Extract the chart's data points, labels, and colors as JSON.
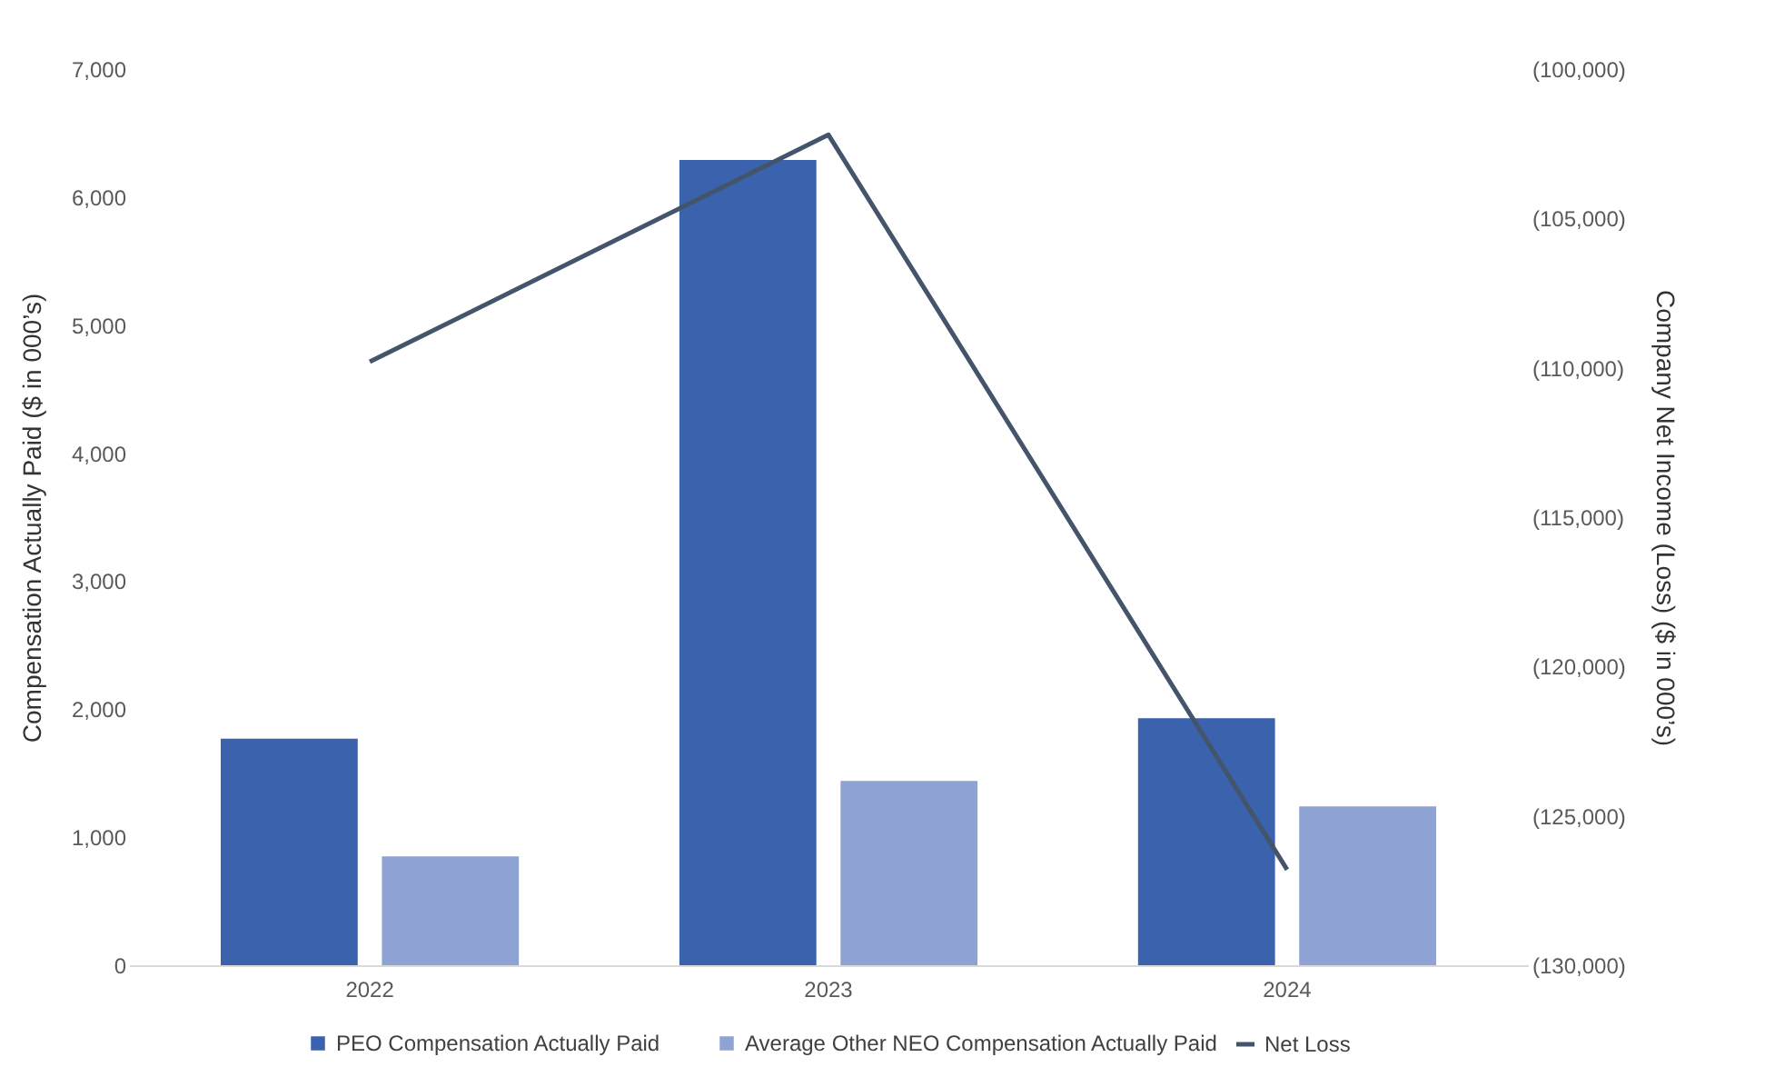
{
  "chart_data": {
    "type": "bar",
    "categories": [
      "2022",
      "2023",
      "2024"
    ],
    "ylabel": "Compensation Actually Paid ($ in 000’s)",
    "y2label": "Company Net Income (Loss) ($ in 000’s)",
    "ylim": [
      0,
      7000
    ],
    "yticks": [
      0,
      {
        "value": 1000,
        "label": "1,000"
      },
      {
        "value": 2000,
        "label": "2,000"
      },
      {
        "value": 3000,
        "label": "3,000"
      },
      {
        "value": 4000,
        "label": "4,000"
      },
      {
        "value": 5000,
        "label": "5,000"
      },
      {
        "value": 6000,
        "label": "6,000"
      },
      {
        "value": 7000,
        "label": "7,000"
      }
    ],
    "y2lim": [
      -130000,
      -100000
    ],
    "y2ticks": [
      {
        "value": -130000,
        "label": "(130,000)"
      },
      {
        "value": -125000,
        "label": "(125,000)"
      },
      {
        "value": -120000,
        "label": "(120,000)"
      },
      {
        "value": -115000,
        "label": "(115,000)"
      },
      {
        "value": -110000,
        "label": "(110,000)"
      },
      {
        "value": -105000,
        "label": "(105,000)"
      },
      {
        "value": -100000,
        "label": "(100,000)"
      }
    ],
    "series": [
      {
        "name": "PEO Compensation Actually Paid",
        "color": "#3a62ad",
        "values": [
          1770,
          6290,
          1930
        ]
      },
      {
        "name": "Average Other NEO Compensation Actually Paid",
        "color": "#8ea3d3",
        "values": [
          850,
          1440,
          1240
        ]
      },
      {
        "name": "Net Loss",
        "type": "line",
        "axis": "y2",
        "color": "#44546a",
        "values": [
          -109800,
          -102200,
          -126800
        ]
      }
    ],
    "legend": "bottom",
    "grid": false
  }
}
